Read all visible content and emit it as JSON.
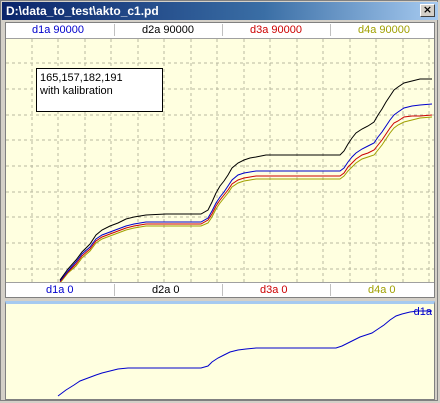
{
  "window": {
    "title": "D:\\data_to_test\\akto_c1.pd",
    "close_glyph": "×"
  },
  "colors": {
    "d1a": "#0000cc",
    "d2a": "#000000",
    "d3a": "#cc0000",
    "d4a": "#a0a000",
    "grid": "#b8b8a0",
    "background": "#ffffe0"
  },
  "channels_top": [
    {
      "name": "d1a",
      "label": "d1a 90000"
    },
    {
      "name": "d2a",
      "label": "d2a 90000"
    },
    {
      "name": "d3a",
      "label": "d3a 90000"
    },
    {
      "name": "d4a",
      "label": "d4a 90000"
    }
  ],
  "channels_bottom": [
    {
      "name": "d1a",
      "label": "d1a 0"
    },
    {
      "name": "d2a",
      "label": "d2a 0"
    },
    {
      "name": "d3a",
      "label": "d3a 0"
    },
    {
      "name": "d4a",
      "label": "d4a 0"
    }
  ],
  "info_box": {
    "line1": "165,157,182,191",
    "line2": "with kalibration"
  },
  "lower_panel": {
    "trace_label": "d1a"
  }
}
